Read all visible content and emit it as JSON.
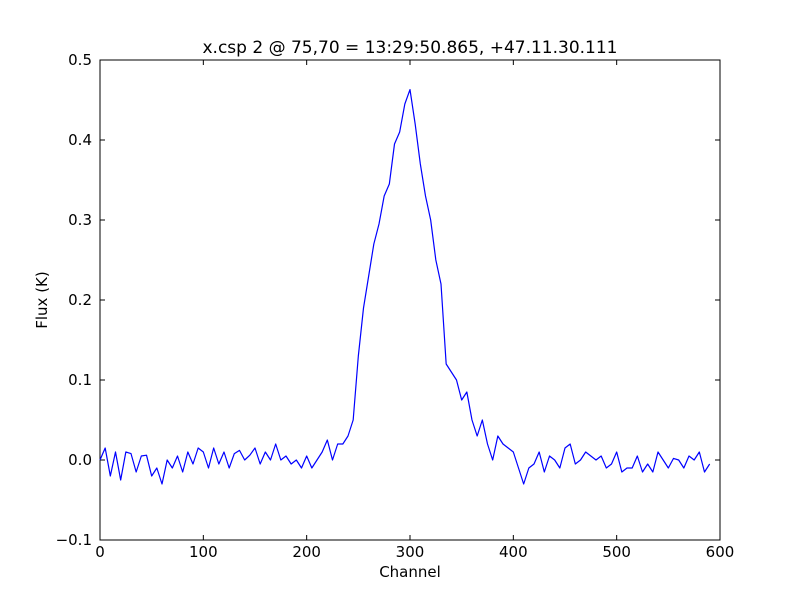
{
  "chart_data": {
    "type": "line",
    "title": "x.csp 2 @ 75,70 = 13:29:50.865, +47.11.30.111",
    "x_label": "Channel",
    "y_label": "Flux (K)",
    "x": [
      0,
      5,
      10,
      15,
      20,
      25,
      30,
      35,
      40,
      45,
      50,
      55,
      60,
      65,
      70,
      75,
      80,
      85,
      90,
      95,
      100,
      105,
      110,
      115,
      120,
      125,
      130,
      135,
      140,
      145,
      150,
      155,
      160,
      165,
      170,
      175,
      180,
      185,
      190,
      195,
      200,
      205,
      210,
      215,
      220,
      225,
      230,
      235,
      240,
      245,
      250,
      255,
      260,
      265,
      270,
      275,
      280,
      285,
      290,
      295,
      300,
      305,
      310,
      315,
      320,
      325,
      330,
      335,
      340,
      345,
      350,
      355,
      360,
      365,
      370,
      375,
      380,
      385,
      390,
      395,
      400,
      405,
      410,
      415,
      420,
      425,
      430,
      435,
      440,
      445,
      450,
      455,
      460,
      465,
      470,
      475,
      480,
      485,
      490,
      495,
      500,
      505,
      510,
      515,
      520,
      525,
      530,
      535,
      540,
      545,
      550,
      555,
      560,
      565,
      570,
      575,
      580,
      585,
      590
    ],
    "series": [
      {
        "name": "x.csp 2",
        "color": "#0000ff",
        "values": [
          0.0,
          0.015,
          -0.02,
          0.01,
          -0.025,
          0.01,
          0.008,
          -0.015,
          0.005,
          0.006,
          -0.02,
          -0.01,
          -0.03,
          0.0,
          -0.01,
          0.005,
          -0.015,
          0.01,
          -0.005,
          0.015,
          0.01,
          -0.01,
          0.015,
          -0.005,
          0.01,
          -0.01,
          0.008,
          0.012,
          0.0,
          0.006,
          0.015,
          -0.005,
          0.01,
          0.0,
          0.02,
          0.0,
          0.005,
          -0.005,
          0.0,
          -0.01,
          0.005,
          -0.01,
          0.0,
          0.01,
          0.025,
          0.0,
          0.02,
          0.02,
          0.03,
          0.05,
          0.13,
          0.19,
          0.23,
          0.27,
          0.295,
          0.33,
          0.345,
          0.395,
          0.41,
          0.445,
          0.463,
          0.42,
          0.37,
          0.33,
          0.3,
          0.25,
          0.22,
          0.12,
          0.11,
          0.1,
          0.075,
          0.085,
          0.05,
          0.03,
          0.05,
          0.02,
          0.0,
          0.03,
          0.02,
          0.015,
          0.01,
          -0.01,
          -0.03,
          -0.01,
          -0.005,
          0.01,
          -0.015,
          0.005,
          0.0,
          -0.01,
          0.015,
          0.02,
          -0.005,
          0.0,
          0.01,
          0.005,
          0.0,
          0.005,
          -0.01,
          -0.005,
          0.01,
          -0.015,
          -0.01,
          -0.01,
          0.005,
          -0.015,
          -0.005,
          -0.015,
          0.01,
          0.0,
          -0.01,
          0.002,
          0.0,
          -0.01,
          0.005,
          0.0,
          0.01,
          -0.015,
          -0.005
        ]
      }
    ],
    "xlim": [
      0,
      600
    ],
    "xticks": [
      0,
      100,
      200,
      300,
      400,
      500,
      600
    ],
    "ylim": [
      -0.1,
      0.5
    ],
    "yticks": [
      {
        "value": -0.1,
        "label": "−0.1"
      },
      {
        "value": 0,
        "label": "0.0"
      },
      0.1,
      0.2,
      0.3,
      0.4,
      0.5
    ],
    "grid": false
  }
}
